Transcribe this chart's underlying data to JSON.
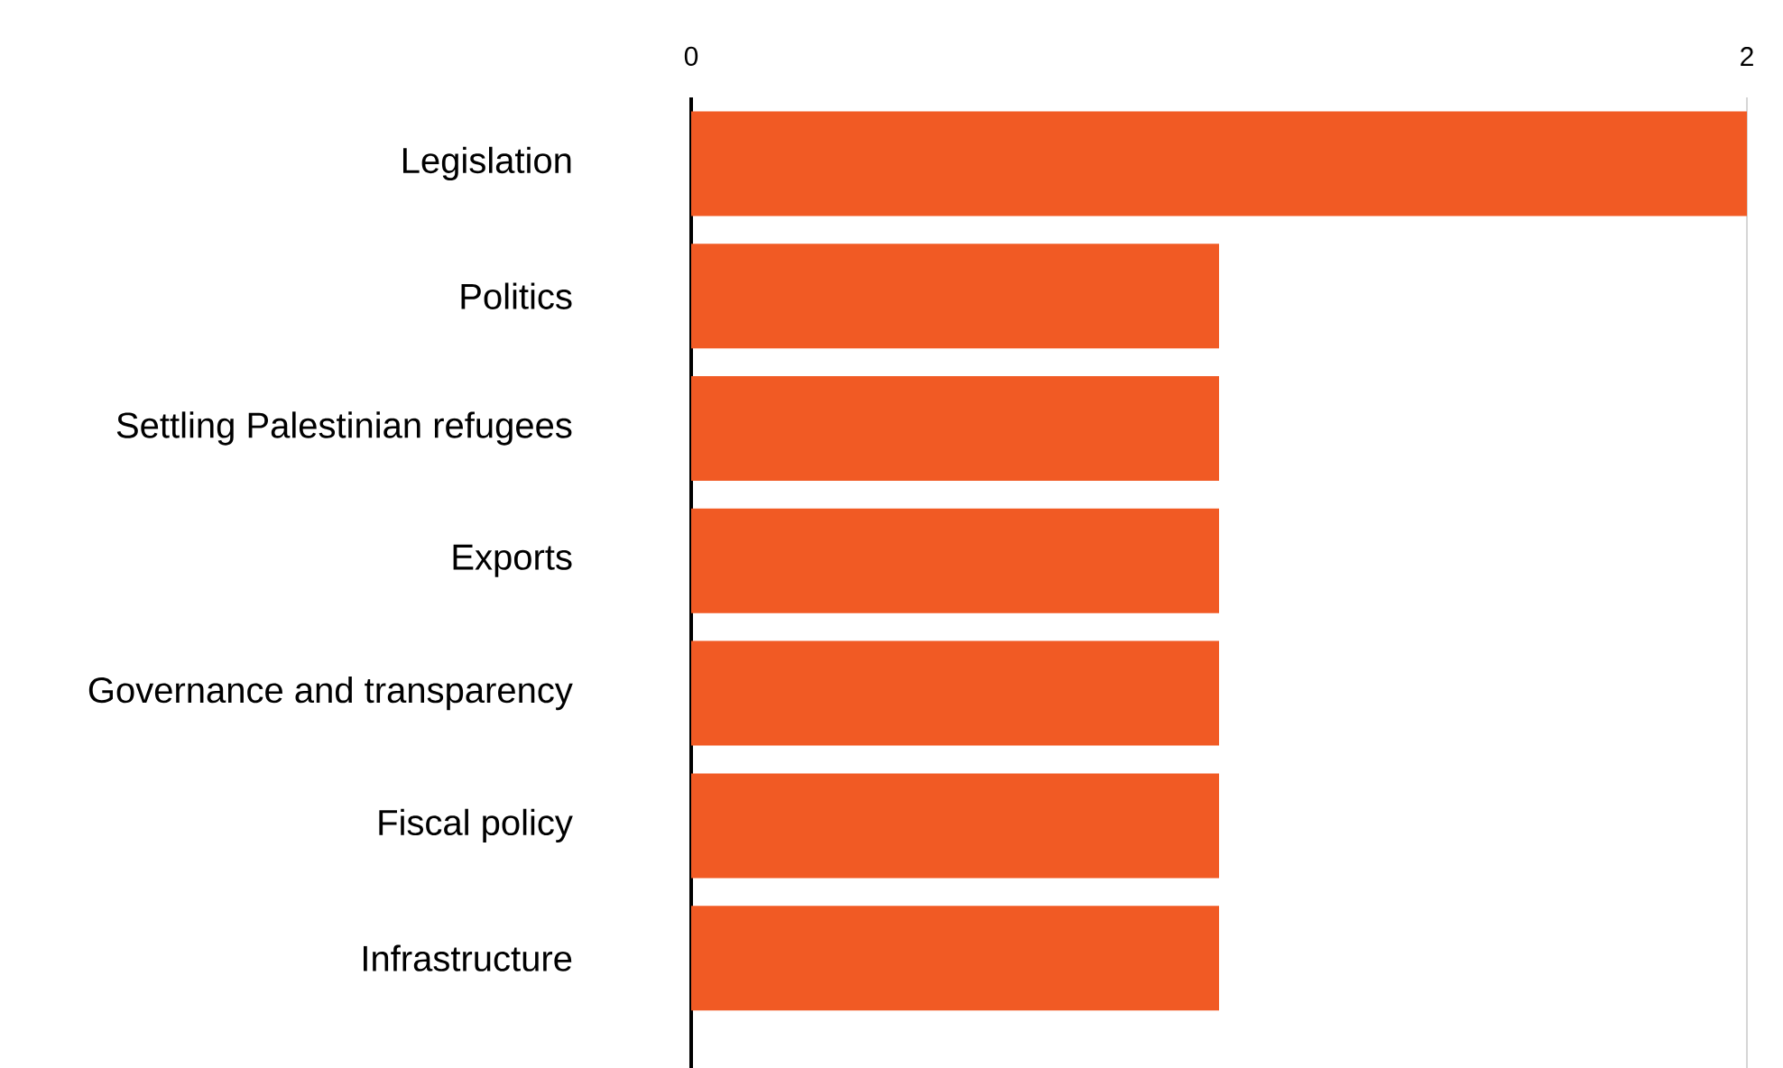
{
  "chart_data": {
    "type": "bar",
    "orientation": "horizontal",
    "categories": [
      "Legislation",
      "Politics",
      "Settling Palestinian refugees",
      "Exports",
      "Governance and transparency",
      "Fiscal policy",
      "Infrastructure"
    ],
    "values": [
      2,
      1,
      1,
      1,
      1,
      1,
      1
    ],
    "color": "#f15a24",
    "xlim": [
      0,
      2
    ],
    "xticks": [
      0,
      2
    ],
    "grid": "x"
  }
}
